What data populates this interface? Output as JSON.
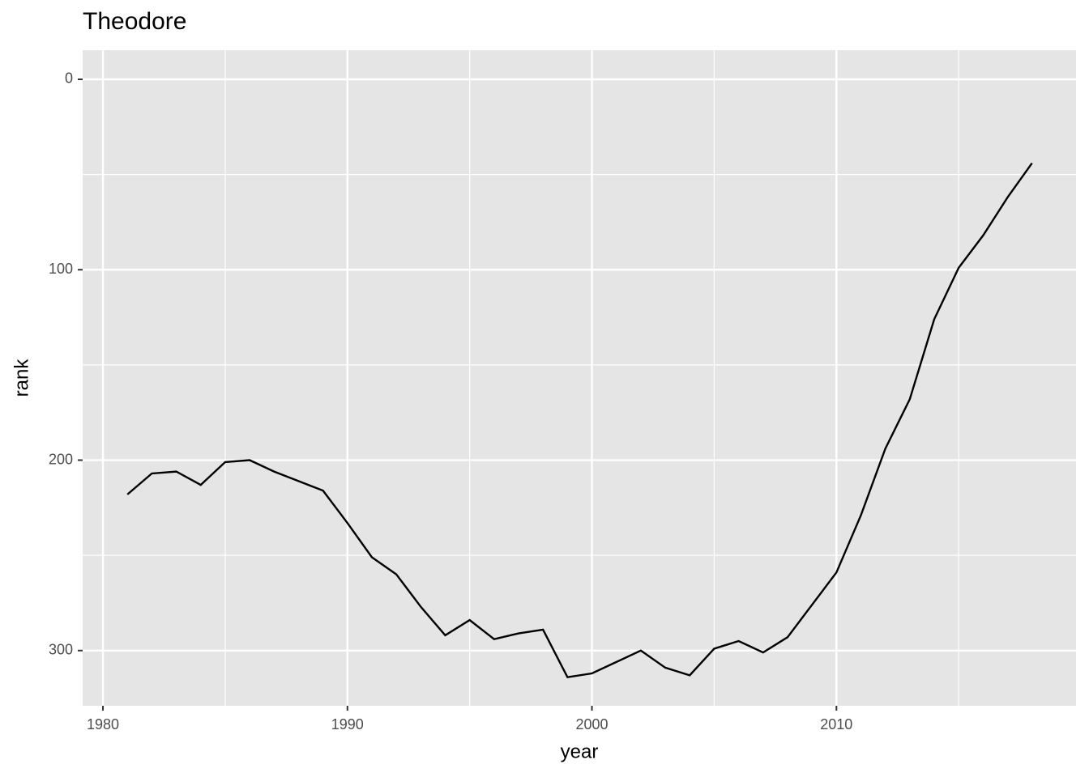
{
  "chart_data": {
    "type": "line",
    "title": "Theodore",
    "x_label": "year",
    "y_label": "rank",
    "x": [
      1981,
      1982,
      1983,
      1984,
      1985,
      1986,
      1987,
      1988,
      1989,
      1990,
      1991,
      1992,
      1993,
      1994,
      1995,
      1996,
      1997,
      1998,
      1999,
      2000,
      2001,
      2002,
      2003,
      2004,
      2005,
      2006,
      2007,
      2008,
      2009,
      2010,
      2011,
      2012,
      2013,
      2014,
      2015,
      2016,
      2017,
      2018
    ],
    "series": [
      {
        "color": "#000000",
        "values": [
          218,
          207,
          206,
          213,
          201,
          200,
          206,
          211,
          216,
          233,
          251,
          260,
          277,
          292,
          284,
          294,
          291,
          289,
          314,
          312,
          306,
          300,
          309,
          313,
          299,
          295,
          301,
          293,
          276,
          259,
          229,
          194,
          168,
          126,
          99,
          82,
          62,
          44
        ]
      }
    ],
    "xlim": [
      1979.17,
      2019.8
    ],
    "xticks": [
      1980,
      1990,
      2000,
      2010
    ],
    "x_minor_grid": [
      1985,
      1995,
      2005,
      2015
    ],
    "ylim": [
      -15.3,
      329
    ],
    "y_reverse": true,
    "yticks": [
      0,
      100,
      200,
      300
    ],
    "y_minor_grid": [
      50,
      150,
      250
    ],
    "grid": true
  }
}
